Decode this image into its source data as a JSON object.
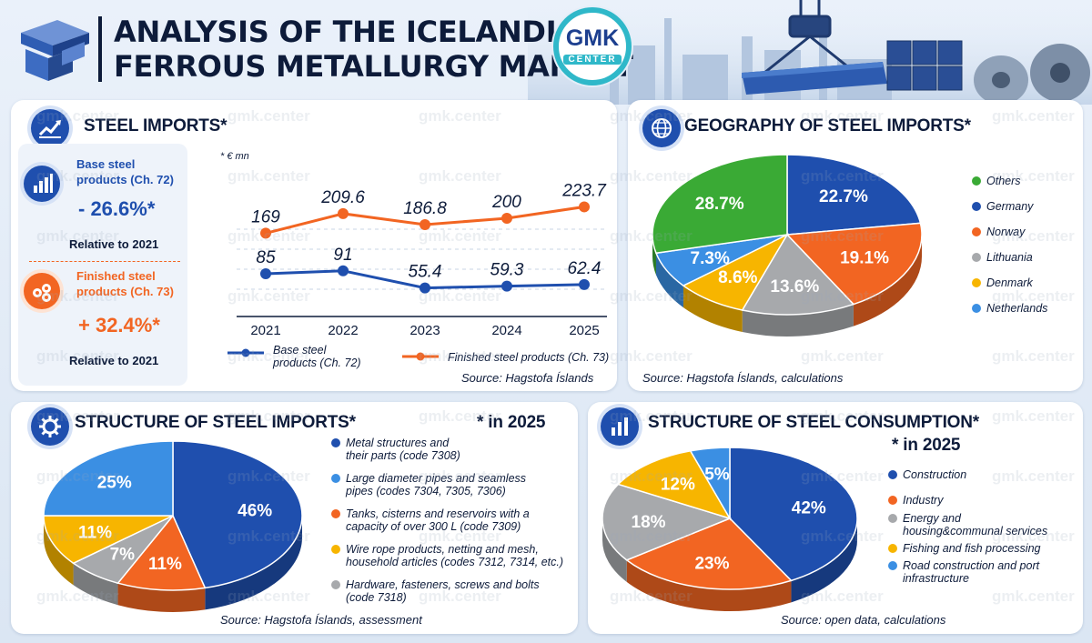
{
  "header": {
    "title_line1": "ANALYSIS OF THE ICELANDIC",
    "title_line2": "FERROUS METALLURGY MARKET",
    "logo_text": "GMK",
    "logo_sub": "CENTER",
    "watermark": "gmk.center"
  },
  "imports_panel": {
    "heading": "STEEL IMPORTS*",
    "unit": "* € mn",
    "kpi_base_label_1": "Base steel",
    "kpi_base_label_2": "products (Ch. 72)",
    "kpi_base_value": "- 26.6%*",
    "kpi_base_sub": "Relative to 2021",
    "kpi_fin_label_1": "Finished steel",
    "kpi_fin_label_2": "products (Ch. 73)",
    "kpi_fin_value": "+ 32.4%*",
    "kpi_fin_sub": "Relative to 2021",
    "legend_base_1": "Base steel",
    "legend_base_2": "products (Ch. 72)",
    "legend_fin": "Finished steel products (Ch. 73)",
    "source": "Source: Hagstofa Íslands"
  },
  "geo_panel": {
    "heading": "GEOGRAPHY OF STEEL IMPORTS*",
    "source": "Source: Hagstofa Íslands, calculations"
  },
  "structure_panel": {
    "heading": "STRUCTURE OF STEEL IMPORTS*",
    "note": "* in 2025",
    "legend": [
      {
        "line1": "Metal structures and",
        "line2": "their parts (code 7308)"
      },
      {
        "line1": "Large diameter pipes and seamless",
        "line2": "pipes (codes 7304, 7305, 7306)"
      },
      {
        "line1": "Tanks, cisterns and reservoirs with a",
        "line2": "capacity of over 300 L (code 7309)"
      },
      {
        "line1": "Wire rope products, netting and mesh,",
        "line2": "household articles (codes 7312, 7314, etc.)"
      },
      {
        "line1": "Hardware, fasteners, screws and bolts",
        "line2": "(code 7318)"
      }
    ],
    "source": "Source: Hagstofa Íslands, assessment"
  },
  "consumption_panel": {
    "heading": "STRUCTURE OF STEEL CONSUMPTION*",
    "note": "* in 2025",
    "legend": [
      {
        "line1": "Construction",
        "line2": ""
      },
      {
        "line1": "Industry",
        "line2": ""
      },
      {
        "line1": "Energy and",
        "line2": "housing&communal services"
      },
      {
        "line1": "Fishing and fish processing",
        "line2": ""
      },
      {
        "line1": "Road construction and port",
        "line2": "infrastructure"
      }
    ],
    "source": "Source: open data, calculations"
  },
  "colors": {
    "navy": "#0d1b3a",
    "blue": "#1f4fae",
    "orange": "#f26522",
    "green": "#3aaa35",
    "grey": "#a7a9ac",
    "yellow": "#f7b500",
    "lightblue": "#3b8fe3"
  },
  "chart_data": [
    {
      "type": "line",
      "x": [
        "2021",
        "2022",
        "2023",
        "2024",
        "2025"
      ],
      "series": [
        {
          "name": "Base steel products (Ch. 72)",
          "values": [
            85,
            91,
            55.4,
            59.3,
            62.4
          ],
          "labels": [
            "85",
            "91",
            "55.4",
            "59.3",
            "62.4"
          ],
          "color": "#1f4fae"
        },
        {
          "name": "Finished steel products (Ch. 73)",
          "values": [
            169,
            209.6,
            186.8,
            200,
            223.7
          ],
          "labels": [
            "169",
            "209.6",
            "186.8",
            "200",
            "223.7"
          ],
          "color": "#f26522"
        }
      ],
      "ylabel": "* € mn"
    },
    {
      "type": "pie",
      "title": "GEOGRAPHY OF STEEL IMPORTS*",
      "categories": [
        "Others",
        "Germany",
        "Norway",
        "Lithuania",
        "Denmark",
        "Netherlands"
      ],
      "values": [
        28.7,
        22.7,
        19.1,
        13.6,
        8.6,
        7.3
      ],
      "labels": [
        "28.7%",
        "22.7%",
        "19.1%",
        "13.6%",
        "8.6%",
        "7.3%"
      ],
      "colors": [
        "#3aaa35",
        "#1f4fae",
        "#f26522",
        "#a7a9ac",
        "#f7b500",
        "#3b8fe3"
      ]
    },
    {
      "type": "pie",
      "title": "STRUCTURE OF STEEL IMPORTS*",
      "categories": [
        "Metal structures and their parts (code 7308)",
        "Tanks, cisterns and reservoirs with a capacity of over 300 L (code 7309)",
        "Hardware, fasteners, screws and bolts (code 7318)",
        "Wire rope products, netting and mesh, household articles (codes 7312, 7314, etc.)",
        "Large diameter pipes and seamless pipes (codes 7304, 7305, 7306)"
      ],
      "values": [
        46,
        11,
        7,
        11,
        25
      ],
      "labels": [
        "46%",
        "11%",
        "7%",
        "11%",
        "25%"
      ],
      "colors": [
        "#1f4fae",
        "#f26522",
        "#a7a9ac",
        "#f7b500",
        "#3b8fe3"
      ]
    },
    {
      "type": "pie",
      "title": "STRUCTURE OF STEEL CONSUMPTION*",
      "categories": [
        "Construction",
        "Industry",
        "Energy and housing&communal services",
        "Fishing and fish processing",
        "Road construction and port infrastructure"
      ],
      "values": [
        42,
        23,
        18,
        12,
        5
      ],
      "labels": [
        "42%",
        "23%",
        "18%",
        "12%",
        "5%"
      ],
      "colors": [
        "#1f4fae",
        "#f26522",
        "#a7a9ac",
        "#f7b500",
        "#3b8fe3"
      ]
    }
  ]
}
